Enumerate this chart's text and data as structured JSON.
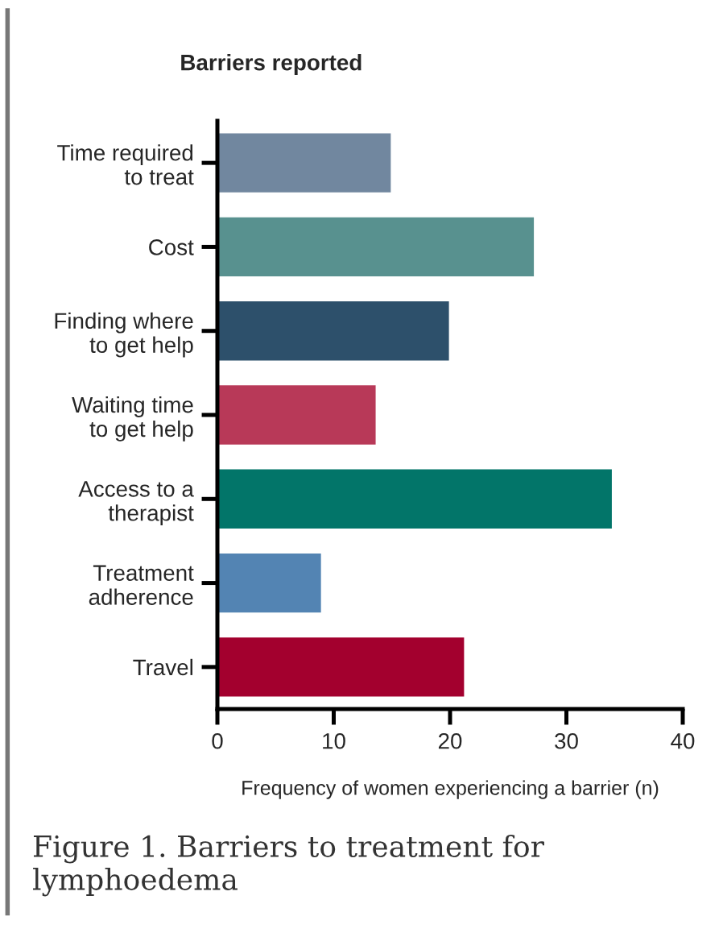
{
  "chart_data": {
    "type": "bar",
    "orientation": "horizontal",
    "title": "Barriers reported",
    "categories": [
      "Time required\nto treat",
      "Cost",
      "Finding where\nto get help",
      "Waiting time\nto get help",
      "Access to a\ntherapist",
      "Treatment\nadherence",
      "Travel"
    ],
    "values": [
      15,
      27.3,
      20,
      13.7,
      34,
      9,
      21.3
    ],
    "colors": [
      "#71879f",
      "#58918f",
      "#2d506b",
      "#b83958",
      "#027569",
      "#5384b3",
      "#a3002e"
    ],
    "xlim": [
      0,
      40
    ],
    "xticks": [
      0,
      10,
      20,
      30,
      40
    ],
    "xlabel": "Frequency of women experiencing a barrier (n)",
    "annotations": [
      "Figure 1. Barriers to treatment for lymphoedema"
    ],
    "grid": false
  }
}
